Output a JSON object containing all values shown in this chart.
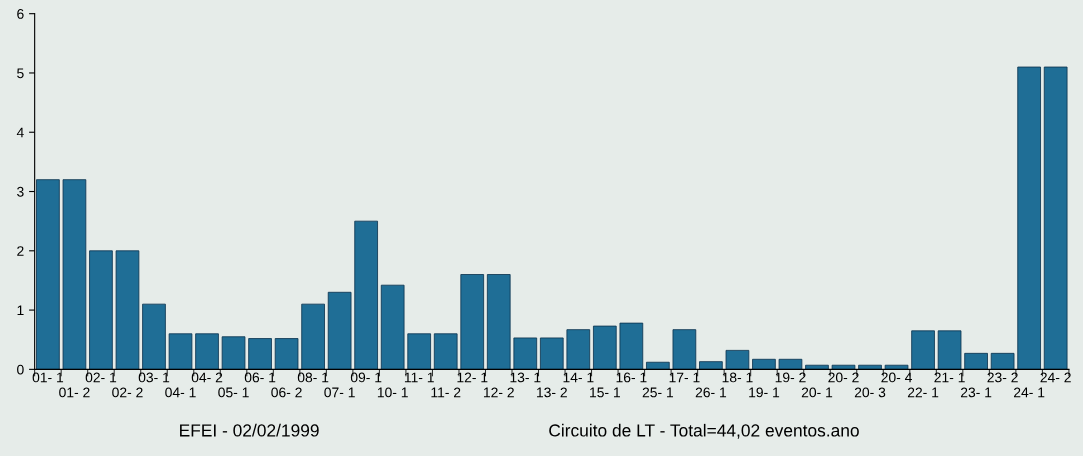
{
  "chart_data": {
    "type": "bar",
    "categories": [
      "01- 1",
      "01- 2",
      "02- 1",
      "02- 2",
      "03- 1",
      "04- 1",
      "04- 2",
      "05- 1",
      "06- 1",
      "06- 2",
      "08- 1",
      "07- 1",
      "09- 1",
      "10- 1",
      "11- 1",
      "11- 2",
      "12- 1",
      "12- 2",
      "13- 1",
      "13- 2",
      "14- 1",
      "15- 1",
      "16- 1",
      "25- 1",
      "17- 1",
      "26- 1",
      "18- 1",
      "19- 1",
      "19- 2",
      "20- 1",
      "20- 2",
      "20- 3",
      "20- 4",
      "22- 1",
      "21- 1",
      "23- 1",
      "23- 2",
      "24- 1",
      "24- 2"
    ],
    "values": [
      3.2,
      3.2,
      2.0,
      2.0,
      1.1,
      0.6,
      0.6,
      0.55,
      0.52,
      0.52,
      1.1,
      1.3,
      2.5,
      1.42,
      0.6,
      0.6,
      1.6,
      1.6,
      0.53,
      0.53,
      0.67,
      0.73,
      0.78,
      0.12,
      0.67,
      0.13,
      0.32,
      0.17,
      0.17,
      0.07,
      0.07,
      0.07,
      0.07,
      0.65,
      0.65,
      0.27,
      0.27,
      5.1,
      5.1
    ],
    "color": "#1f6e96",
    "ylim": [
      0,
      6
    ],
    "yticks": [
      0,
      1,
      2,
      3,
      4,
      5,
      6
    ],
    "grid": false,
    "annotations": [
      "EFEI - 02/02/1999",
      "Circuito de LT - Total=44,02 eventos.ano"
    ]
  }
}
